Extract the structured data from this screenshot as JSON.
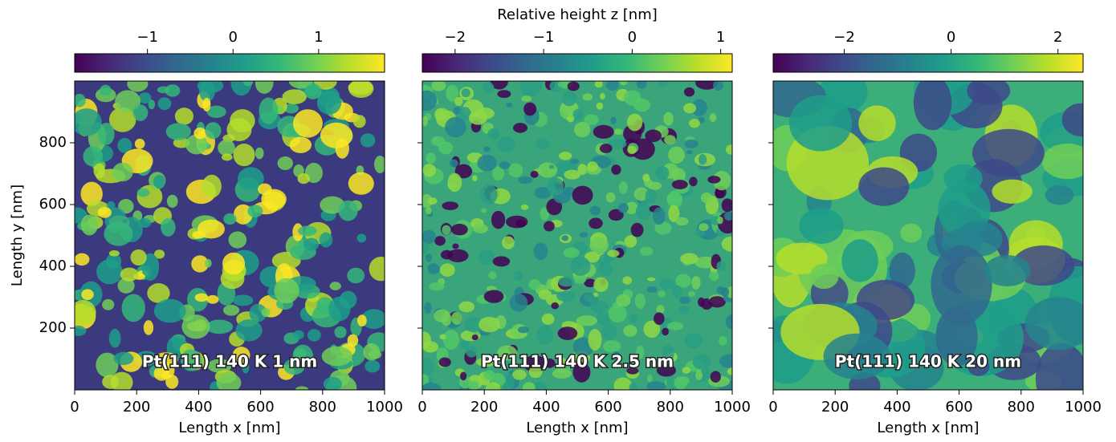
{
  "chart_data": [
    {
      "type": "heatmap",
      "xlabel": "Length x  [nm]",
      "ylabel": "Length y  [nm]",
      "xlim": [
        0,
        1000
      ],
      "xticks": [
        0,
        200,
        400,
        600,
        800,
        1000
      ],
      "ylim": [
        0,
        1000
      ],
      "yticks": [
        200,
        400,
        600,
        800
      ],
      "ytick_labels": true,
      "annotation": "Pt(111)    140 K    1 nm",
      "colorbar": {
        "lim": [
          -1.85,
          1.77
        ],
        "ticks": [
          {
            "value": -1,
            "label": "−1"
          },
          0,
          1
        ]
      }
    },
    {
      "type": "heatmap",
      "xlabel": "Length x  [nm]",
      "xlim": [
        0,
        1000
      ],
      "xticks": [
        0,
        200,
        400,
        600,
        800,
        1000
      ],
      "ylim": [
        0,
        1000
      ],
      "yticks": [
        200,
        400,
        600,
        800
      ],
      "ytick_labels": false,
      "annotation": "Pt(111)    140 K    2.5 nm",
      "colorbar": {
        "label": "Relative height z  [nm]",
        "lim": [
          -2.37,
          1.13
        ],
        "ticks": [
          {
            "value": -2,
            "label": "−2"
          },
          {
            "value": -1,
            "label": "−1"
          },
          0,
          1
        ]
      }
    },
    {
      "type": "heatmap",
      "xlabel": "Length x  [nm]",
      "xlim": [
        0,
        1000
      ],
      "xticks": [
        0,
        200,
        400,
        600,
        800,
        1000
      ],
      "ylim": [
        0,
        1000
      ],
      "yticks": [
        200,
        400,
        600,
        800
      ],
      "ytick_labels": false,
      "annotation": "Pt(111)    140 K    20 nm",
      "colorbar": {
        "lim": [
          -3.33,
          2.47
        ],
        "ticks": [
          {
            "value": -2,
            "label": "−2"
          },
          0,
          2
        ]
      }
    }
  ]
}
